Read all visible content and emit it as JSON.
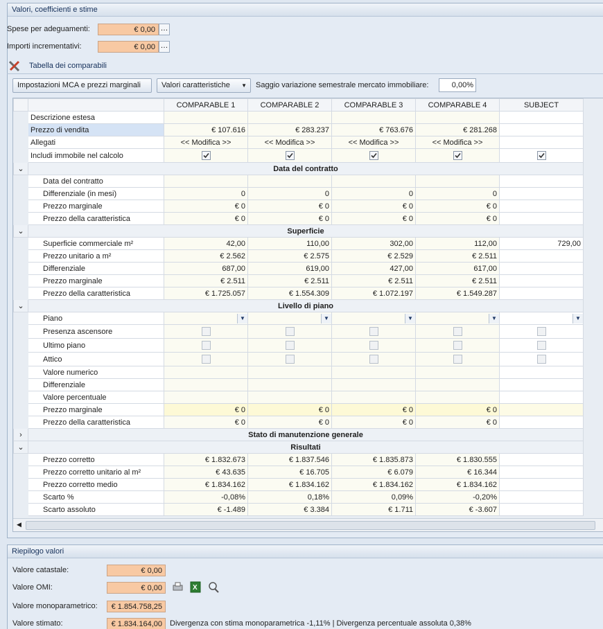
{
  "panel": {
    "title": "Valori, coefficienti e stime",
    "fields": [
      {
        "label": "Spese per adeguamenti:",
        "value": "€ 0,00"
      },
      {
        "label": "Importi incrementativi:",
        "value": "€ 0,00"
      }
    ]
  },
  "comparables": {
    "title": "Tabella dei comparabili",
    "toolbar": {
      "button": "Impostazioni MCA e prezzi marginali",
      "dropdown": "Valori caratteristiche",
      "rate_label": "Saggio variazione semestrale mercato immobiliare:",
      "rate_value": "0,00%"
    },
    "columns": [
      "COMPARABLE 1",
      "COMPARABLE 2",
      "COMPARABLE 3",
      "COMPARABLE 4",
      "SUBJECT"
    ],
    "rows": [
      {
        "label": "Descrizione estesa",
        "cells": [
          null,
          null,
          null,
          null,
          null
        ]
      },
      {
        "label": "Prezzo di vendita",
        "selected": true,
        "cells": [
          "€ 107.616",
          "€ 283.237",
          "€ 763.676",
          "€ 281.268",
          null
        ]
      },
      {
        "label": "Allegati",
        "align": "center",
        "cells": [
          "<< Modifica >>",
          "<< Modifica >>",
          "<< Modifica >>",
          "<< Modifica >>",
          null
        ]
      },
      {
        "label": "Includi immobile nel calcolo",
        "kind": "checkbox",
        "cells": [
          true,
          true,
          true,
          true,
          true
        ]
      },
      {
        "group": "Data del contratto",
        "expanded": true
      },
      {
        "label": "Data del contratto",
        "cells": [
          null,
          null,
          null,
          null,
          null
        ]
      },
      {
        "label": "Differenziale (in mesi)",
        "cells": [
          "0",
          "0",
          "0",
          "0",
          null
        ]
      },
      {
        "label": "Prezzo marginale",
        "cells": [
          "€ 0",
          "€ 0",
          "€ 0",
          "€ 0",
          null
        ]
      },
      {
        "label": "Prezzo della caratteristica",
        "cells": [
          "€ 0",
          "€ 0",
          "€ 0",
          "€ 0",
          null
        ]
      },
      {
        "group": "Superficie",
        "expanded": true
      },
      {
        "label": "Superficie commerciale m²",
        "cells": [
          "42,00",
          "110,00",
          "302,00",
          "112,00",
          "729,00"
        ]
      },
      {
        "label": "Prezzo unitario a m²",
        "cells": [
          "€ 2.562",
          "€ 2.575",
          "€ 2.529",
          "€ 2.511",
          null
        ]
      },
      {
        "label": "Differenziale",
        "cells": [
          "687,00",
          "619,00",
          "427,00",
          "617,00",
          null
        ]
      },
      {
        "label": "Prezzo marginale",
        "cells": [
          "€ 2.511",
          "€ 2.511",
          "€ 2.511",
          "€ 2.511",
          null
        ]
      },
      {
        "label": "Prezzo della caratteristica",
        "cells": [
          "€ 1.725.057",
          "€ 1.554.309",
          "€ 1.072.197",
          "€ 1.549.287",
          null
        ]
      },
      {
        "group": "Livello di piano",
        "expanded": true
      },
      {
        "label": "Piano",
        "kind": "dropdown",
        "cells": [
          null,
          null,
          null,
          null,
          null
        ]
      },
      {
        "label": "Presenza ascensore",
        "kind": "checkbox",
        "cells": [
          false,
          false,
          false,
          false,
          false
        ]
      },
      {
        "label": "Ultimo piano",
        "kind": "checkbox",
        "cells": [
          false,
          false,
          false,
          false,
          false
        ]
      },
      {
        "label": "Attico",
        "kind": "checkbox",
        "cells": [
          false,
          false,
          false,
          false,
          false
        ]
      },
      {
        "label": "Valore numerico",
        "cells": [
          null,
          null,
          null,
          null,
          null
        ]
      },
      {
        "label": "Differenziale",
        "cells": [
          null,
          null,
          null,
          null,
          null
        ]
      },
      {
        "label": "Valore percentuale",
        "cells": [
          null,
          null,
          null,
          null,
          null
        ]
      },
      {
        "label": "Prezzo marginale",
        "highlight": true,
        "cells": [
          "€ 0",
          "€ 0",
          "€ 0",
          "€ 0",
          null
        ]
      },
      {
        "label": "Prezzo della caratteristica",
        "cells": [
          "€ 0",
          "€ 0",
          "€ 0",
          "€ 0",
          null
        ]
      },
      {
        "group": "Stato di manutenzione generale",
        "expanded": false
      },
      {
        "group": "Risultati",
        "expanded": true
      },
      {
        "label": "Prezzo corretto",
        "cells": [
          "€ 1.832.673",
          "€ 1.837.546",
          "€ 1.835.873",
          "€ 1.830.555",
          null
        ]
      },
      {
        "label": "Prezzo corretto unitario al m²",
        "cells": [
          "€ 43.635",
          "€ 16.705",
          "€ 6.079",
          "€ 16.344",
          null
        ]
      },
      {
        "label": "Prezzo corretto medio",
        "cells": [
          "€ 1.834.162",
          "€ 1.834.162",
          "€ 1.834.162",
          "€ 1.834.162",
          null
        ]
      },
      {
        "label": "Scarto %",
        "cells": [
          "-0,08%",
          "0,18%",
          "0,09%",
          "-0,20%",
          null
        ]
      },
      {
        "label": "Scarto assoluto",
        "cells": [
          "€ -1.489",
          "€ 3.384",
          "€ 1.711",
          "€ -3.607",
          null
        ]
      }
    ]
  },
  "summary": {
    "title": "Riepilogo valori",
    "fields": [
      {
        "label": "Valore catastale:",
        "value": "€ 0,00"
      },
      {
        "label": "Valore OMI:",
        "value": "€ 0,00"
      },
      {
        "label": "Valore monoparametrico:",
        "value": "€ 1.854.758,25"
      },
      {
        "label": "Valore stimato:",
        "value": "€ 1.834.164,00"
      }
    ],
    "note": "Divergenza con stima monoparametrica -1,11% | Divergenza percentuale assoluta 0,38%"
  }
}
